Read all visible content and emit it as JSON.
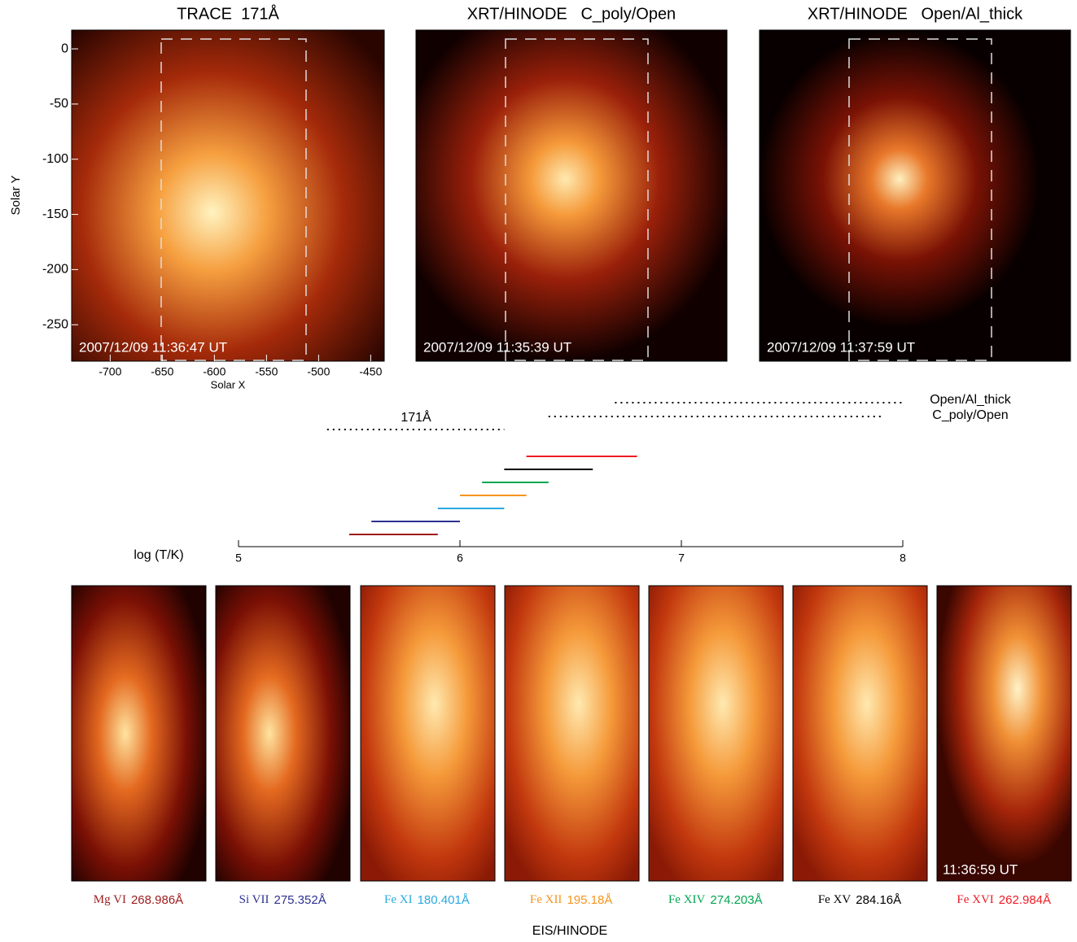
{
  "top_panels": [
    {
      "title": "TRACE  171Å",
      "timestamp": "2007/12/09 11:36:47 UT"
    },
    {
      "title": "XRT/HINODE   C_poly/Open",
      "timestamp": "2007/12/09 11:35:39 UT"
    },
    {
      "title": "XRT/HINODE   Open/Al_thick",
      "timestamp": "2007/12/09 11:37:59 UT"
    }
  ],
  "top_axes": {
    "x_label": "Solar X",
    "y_label": "Solar Y",
    "xlim": [
      -737,
      -437
    ],
    "xticks": [
      -700,
      -650,
      -600,
      -550,
      -500,
      -450
    ],
    "ylim": [
      -283,
      17
    ],
    "yticks": [
      0,
      -50,
      -100,
      -150,
      -200,
      -250
    ]
  },
  "temperature_axis": {
    "label": "log (T/K)",
    "xlim": [
      5,
      8
    ],
    "xticks": [
      5,
      6,
      7,
      8
    ]
  },
  "filter_ranges": [
    {
      "name": "Open/Al_thick",
      "range": [
        6.7,
        8.0
      ]
    },
    {
      "name": "C_poly/Open",
      "range": [
        6.4,
        7.9
      ]
    },
    {
      "name": "171Å",
      "range": [
        5.4,
        6.2
      ]
    }
  ],
  "eis_lines": [
    {
      "ion": "Mg VI",
      "wavelength": "268.986Å",
      "color": "#9e1b1b",
      "range": [
        5.5,
        5.9
      ]
    },
    {
      "ion": "Si VII",
      "wavelength": "275.352Å",
      "color": "#2e3192",
      "range": [
        5.6,
        6.0
      ]
    },
    {
      "ion": "Fe XI",
      "wavelength": "180.401Å",
      "color": "#29a9e0",
      "range": [
        5.9,
        6.2
      ]
    },
    {
      "ion": "Fe XII",
      "wavelength": "195.18Å",
      "color": "#f7941d",
      "range": [
        6.0,
        6.3
      ]
    },
    {
      "ion": "Fe XIV",
      "wavelength": "274.203Å",
      "color": "#00a651",
      "range": [
        6.1,
        6.4
      ]
    },
    {
      "ion": "Fe XV",
      "wavelength": "284.16Å",
      "color": "#000000",
      "range": [
        6.2,
        6.6
      ]
    },
    {
      "ion": "Fe XVI",
      "wavelength": "262.984Å",
      "color": "#ed1c24",
      "range": [
        6.3,
        6.8
      ]
    }
  ],
  "eis_timestamp": "11:36:59 UT",
  "eis_label": "EIS/HINODE"
}
